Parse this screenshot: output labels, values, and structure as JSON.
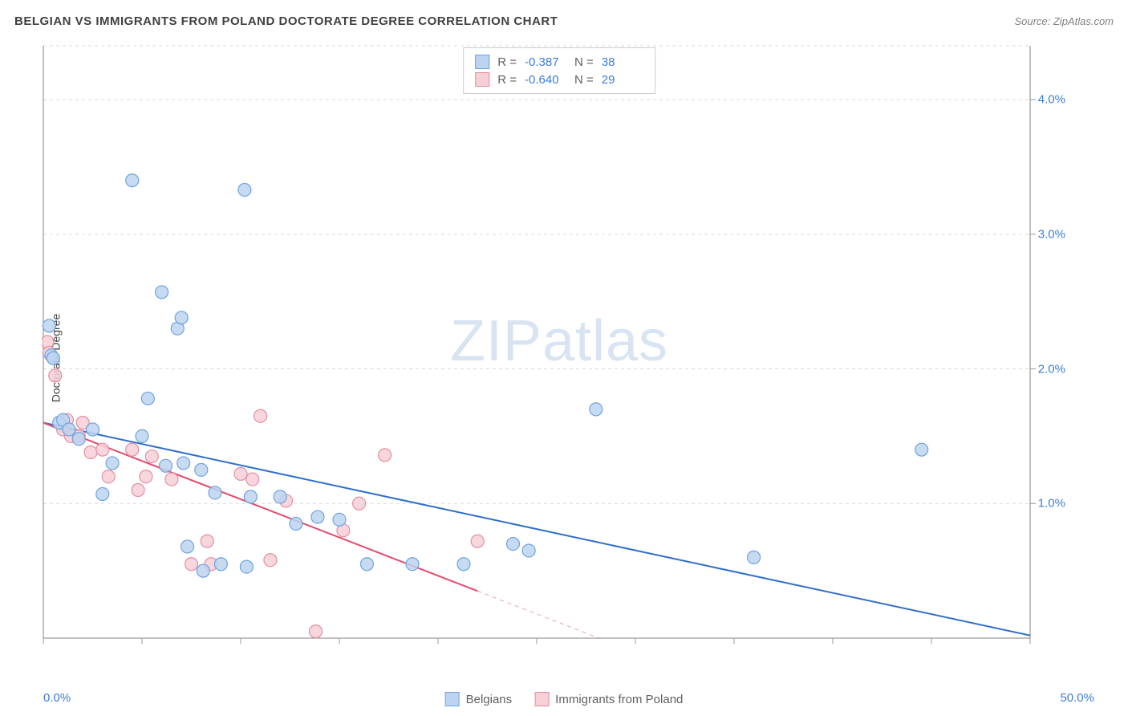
{
  "header": {
    "title": "BELGIAN VS IMMIGRANTS FROM POLAND DOCTORATE DEGREE CORRELATION CHART",
    "source": "Source: ZipAtlas.com"
  },
  "watermark": {
    "zip": "ZIP",
    "atlas": "atlas"
  },
  "chart": {
    "type": "scatter",
    "ylabel": "Doctorate Degree",
    "background_color": "#ffffff",
    "grid_color": "#d9d9d9",
    "axis_color": "#808080",
    "tick_color": "#999999",
    "xlim": [
      0,
      50
    ],
    "ylim": [
      0,
      4.4
    ],
    "xtick_positions": [
      0,
      5,
      10,
      15,
      20,
      25,
      30,
      35,
      40,
      45,
      50
    ],
    "xtick_labels": {
      "0": "0.0%",
      "50": "50.0%"
    },
    "ytick_positions": [
      1.0,
      2.0,
      3.0,
      4.0
    ],
    "ytick_labels": [
      "1.0%",
      "2.0%",
      "3.0%",
      "4.0%"
    ],
    "marker_radius": 8,
    "marker_stroke_width": 1.2,
    "trend_stroke_width": 2,
    "label_fontsize": 14,
    "axis_label_color": "#3b7dd8",
    "series": [
      {
        "name": "Belgians",
        "key": "belgians",
        "fill": "#bcd4f0",
        "stroke": "#6fa3de",
        "line_color": "#2f6fc9",
        "r_value": "-0.387",
        "n_value": "38",
        "trend": {
          "x1": 0,
          "y1": 1.6,
          "x2": 50,
          "y2": 0.02,
          "dashed_from_x": 50
        },
        "points": [
          [
            0.3,
            2.32
          ],
          [
            0.4,
            2.1
          ],
          [
            0.5,
            2.08
          ],
          [
            0.8,
            1.6
          ],
          [
            1.0,
            1.62
          ],
          [
            1.3,
            1.55
          ],
          [
            1.8,
            1.48
          ],
          [
            2.5,
            1.55
          ],
          [
            3.0,
            1.07
          ],
          [
            3.5,
            1.3
          ],
          [
            4.5,
            3.4
          ],
          [
            5.0,
            1.5
          ],
          [
            5.3,
            1.78
          ],
          [
            6.0,
            2.57
          ],
          [
            6.2,
            1.28
          ],
          [
            6.8,
            2.3
          ],
          [
            7.0,
            2.38
          ],
          [
            7.1,
            1.3
          ],
          [
            7.3,
            0.68
          ],
          [
            8.0,
            1.25
          ],
          [
            8.1,
            0.5
          ],
          [
            8.7,
            1.08
          ],
          [
            9.0,
            0.55
          ],
          [
            10.2,
            3.33
          ],
          [
            10.3,
            0.53
          ],
          [
            10.5,
            1.05
          ],
          [
            12.0,
            1.05
          ],
          [
            12.8,
            0.85
          ],
          [
            13.9,
            0.9
          ],
          [
            15.0,
            0.88
          ],
          [
            16.4,
            0.55
          ],
          [
            18.7,
            0.55
          ],
          [
            21.3,
            0.55
          ],
          [
            23.8,
            0.7
          ],
          [
            24.6,
            0.65
          ],
          [
            28.0,
            1.7
          ],
          [
            36.0,
            0.6
          ],
          [
            44.5,
            1.4
          ]
        ]
      },
      {
        "name": "Immigrants from Poland",
        "key": "poland",
        "fill": "#f6cfd7",
        "stroke": "#e38fa1",
        "line_color": "#e24b6d",
        "r_value": "-0.640",
        "n_value": "29",
        "trend": {
          "x1": 0,
          "y1": 1.6,
          "x2": 22,
          "y2": 0.35,
          "dashed_from_x": 22
        },
        "points": [
          [
            0.2,
            2.2
          ],
          [
            0.3,
            2.12
          ],
          [
            0.6,
            1.95
          ],
          [
            1.0,
            1.55
          ],
          [
            1.2,
            1.62
          ],
          [
            1.4,
            1.5
          ],
          [
            1.8,
            1.5
          ],
          [
            2.0,
            1.6
          ],
          [
            2.4,
            1.38
          ],
          [
            3.0,
            1.4
          ],
          [
            3.3,
            1.2
          ],
          [
            4.5,
            1.4
          ],
          [
            4.8,
            1.1
          ],
          [
            5.2,
            1.2
          ],
          [
            5.5,
            1.35
          ],
          [
            6.5,
            1.18
          ],
          [
            7.5,
            0.55
          ],
          [
            8.3,
            0.72
          ],
          [
            8.5,
            0.55
          ],
          [
            10.0,
            1.22
          ],
          [
            10.6,
            1.18
          ],
          [
            11.0,
            1.65
          ],
          [
            11.5,
            0.58
          ],
          [
            12.3,
            1.02
          ],
          [
            13.8,
            0.05
          ],
          [
            15.2,
            0.8
          ],
          [
            16.0,
            1.0
          ],
          [
            17.3,
            1.36
          ],
          [
            22.0,
            0.72
          ]
        ]
      }
    ]
  },
  "legend": {
    "r_label": "R =",
    "n_label": "N ="
  }
}
